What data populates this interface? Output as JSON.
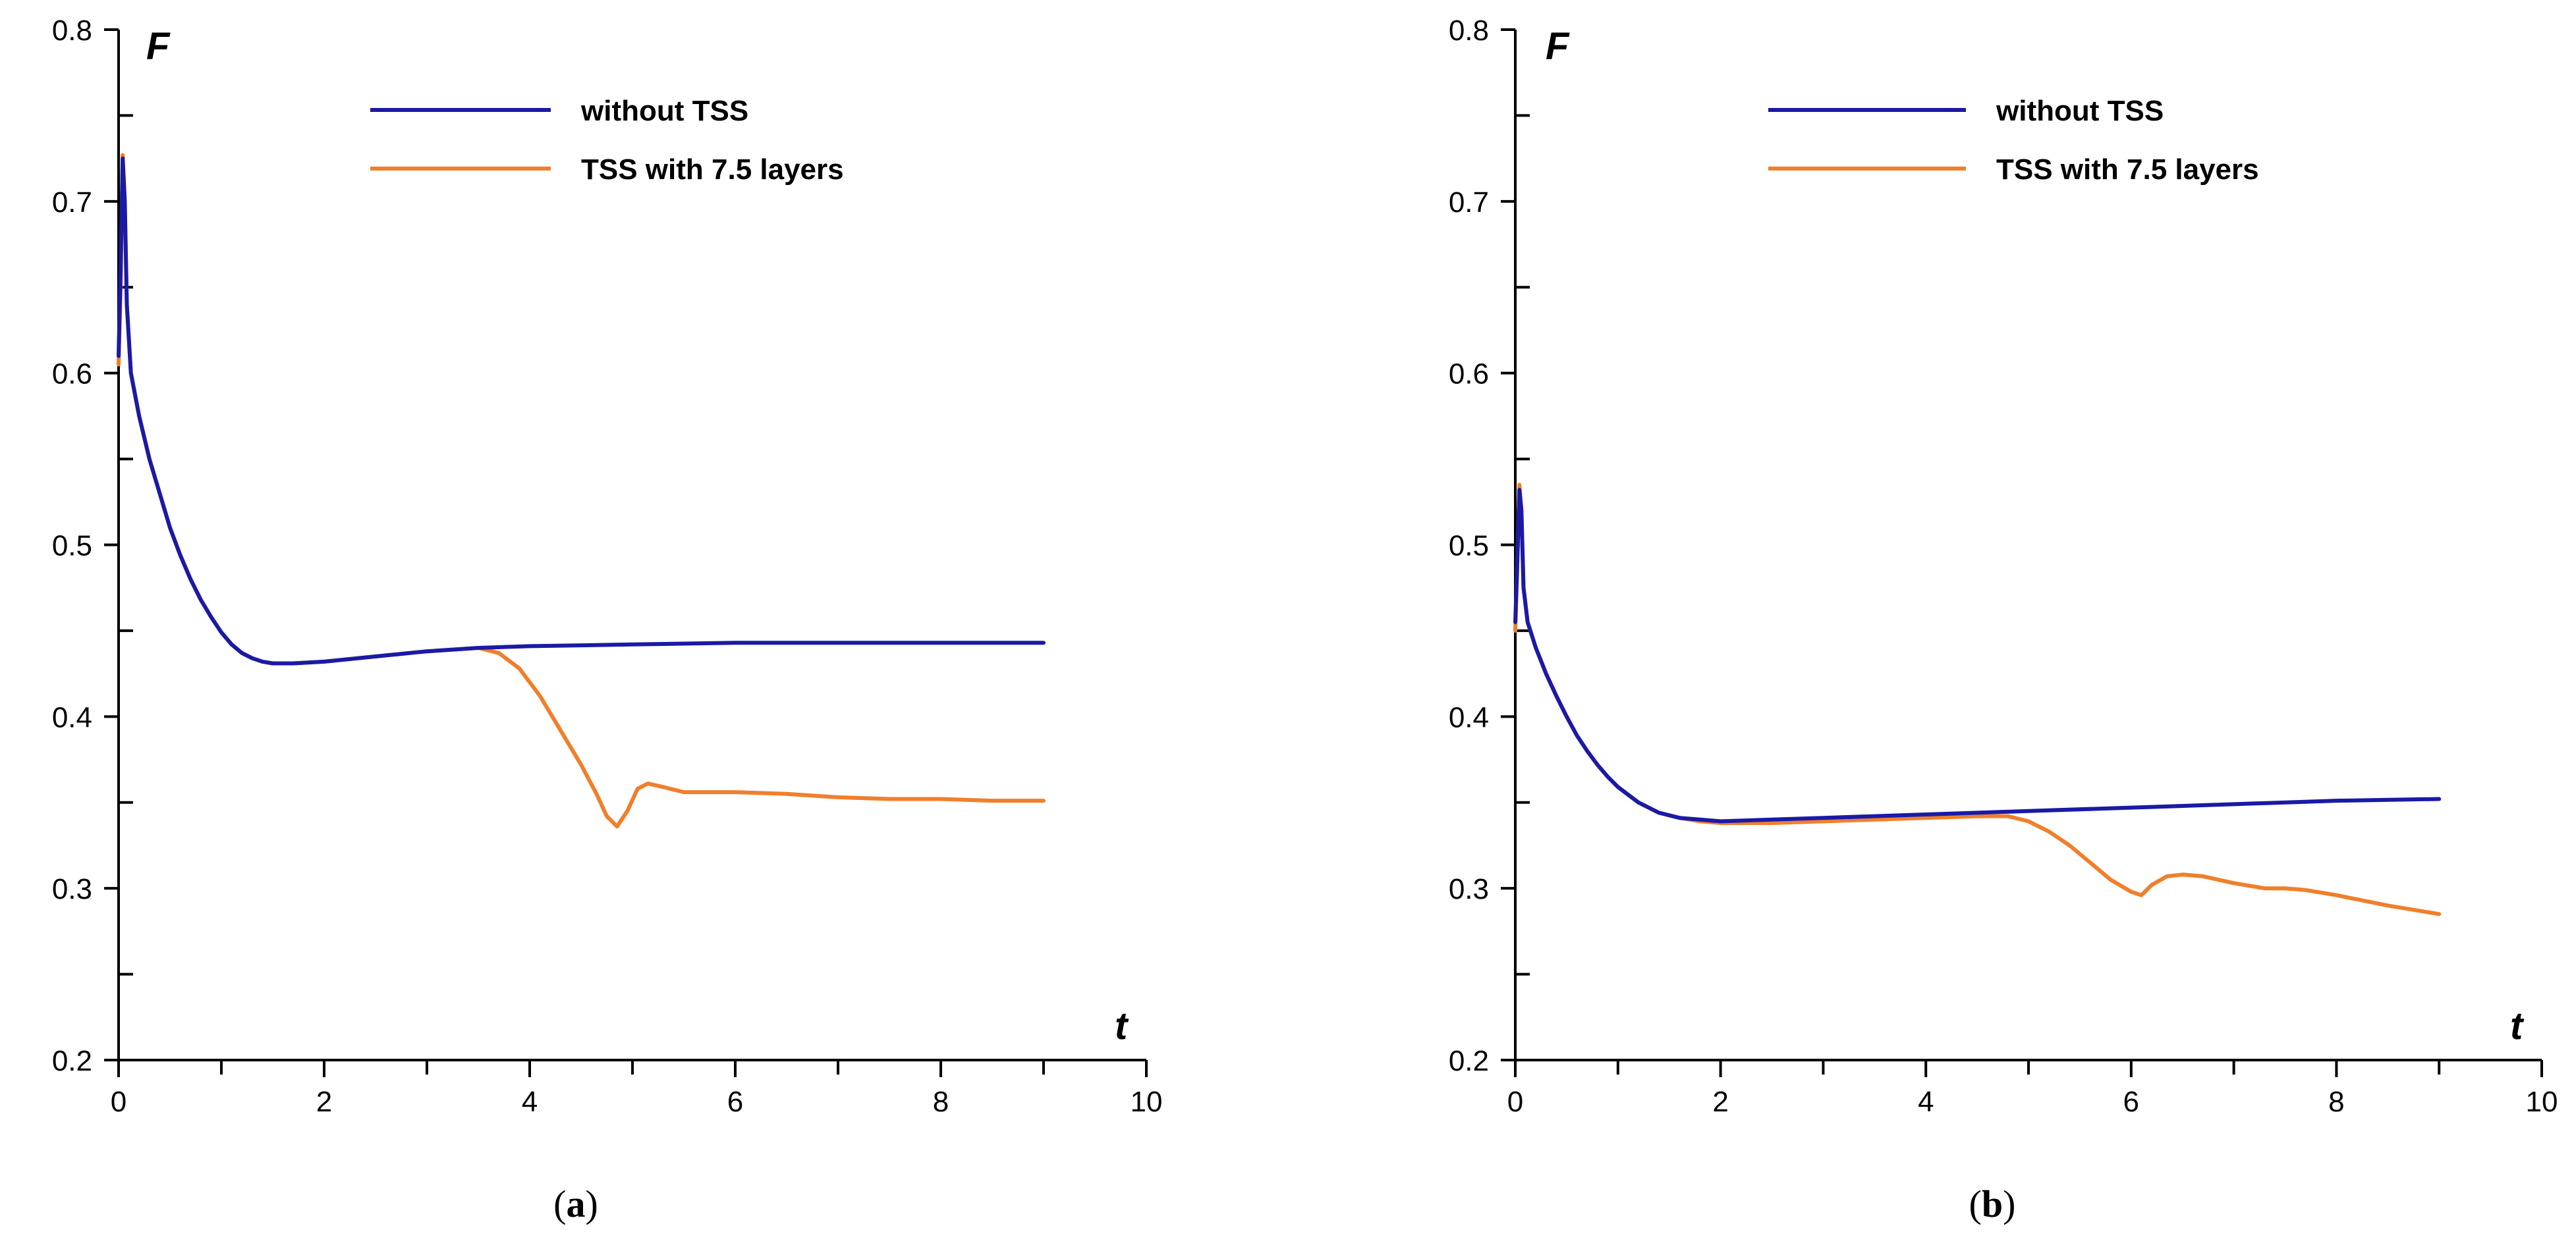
{
  "chart_data": [
    {
      "type": "line",
      "panel_label": "(a)",
      "panel_letter": "a",
      "xlabel": "t",
      "ylabel": "F",
      "xlim": [
        0,
        10
      ],
      "ylim": [
        0.2,
        0.8
      ],
      "x_ticks": [
        "0",
        "2",
        "4",
        "6",
        "8",
        "10"
      ],
      "y_ticks": [
        "0.2",
        "0.3",
        "0.4",
        "0.5",
        "0.6",
        "0.7",
        "0.8"
      ],
      "legend_position": "top-center",
      "series": [
        {
          "name": "without TSS",
          "color": "#1a1aa6",
          "points": [
            [
              0,
              0.61
            ],
            [
              0.02,
              0.66
            ],
            [
              0.04,
              0.725
            ],
            [
              0.06,
              0.7
            ],
            [
              0.08,
              0.64
            ],
            [
              0.12,
              0.6
            ],
            [
              0.2,
              0.575
            ],
            [
              0.3,
              0.55
            ],
            [
              0.4,
              0.53
            ],
            [
              0.5,
              0.51
            ],
            [
              0.6,
              0.494
            ],
            [
              0.7,
              0.48
            ],
            [
              0.8,
              0.468
            ],
            [
              0.9,
              0.458
            ],
            [
              1.0,
              0.449
            ],
            [
              1.1,
              0.442
            ],
            [
              1.2,
              0.437
            ],
            [
              1.3,
              0.434
            ],
            [
              1.4,
              0.432
            ],
            [
              1.5,
              0.431
            ],
            [
              1.7,
              0.431
            ],
            [
              2.0,
              0.432
            ],
            [
              2.5,
              0.435
            ],
            [
              3.0,
              0.438
            ],
            [
              3.5,
              0.44
            ],
            [
              4.0,
              0.441
            ],
            [
              5.0,
              0.442
            ],
            [
              6.0,
              0.443
            ],
            [
              7.0,
              0.443
            ],
            [
              8.0,
              0.443
            ],
            [
              9.0,
              0.443
            ]
          ]
        },
        {
          "name": "TSS with 7.5 layers",
          "color": "#f07f2c",
          "points": [
            [
              0,
              0.605
            ],
            [
              0.02,
              0.65
            ],
            [
              0.04,
              0.727
            ],
            [
              0.06,
              0.7
            ],
            [
              0.08,
              0.64
            ],
            [
              0.12,
              0.6
            ],
            [
              0.2,
              0.575
            ],
            [
              0.3,
              0.55
            ],
            [
              0.4,
              0.53
            ],
            [
              0.5,
              0.51
            ],
            [
              0.6,
              0.494
            ],
            [
              0.7,
              0.48
            ],
            [
              0.8,
              0.468
            ],
            [
              0.9,
              0.458
            ],
            [
              1.0,
              0.449
            ],
            [
              1.1,
              0.442
            ],
            [
              1.2,
              0.437
            ],
            [
              1.3,
              0.434
            ],
            [
              1.4,
              0.432
            ],
            [
              1.5,
              0.431
            ],
            [
              1.7,
              0.431
            ],
            [
              2.0,
              0.432
            ],
            [
              2.5,
              0.435
            ],
            [
              3.0,
              0.438
            ],
            [
              3.5,
              0.44
            ],
            [
              3.7,
              0.437
            ],
            [
              3.9,
              0.428
            ],
            [
              4.1,
              0.412
            ],
            [
              4.3,
              0.392
            ],
            [
              4.5,
              0.372
            ],
            [
              4.65,
              0.355
            ],
            [
              4.75,
              0.342
            ],
            [
              4.85,
              0.336
            ],
            [
              4.95,
              0.345
            ],
            [
              5.05,
              0.358
            ],
            [
              5.15,
              0.361
            ],
            [
              5.3,
              0.359
            ],
            [
              5.5,
              0.356
            ],
            [
              5.7,
              0.356
            ],
            [
              6.0,
              0.356
            ],
            [
              6.5,
              0.355
            ],
            [
              7.0,
              0.353
            ],
            [
              7.5,
              0.352
            ],
            [
              8.0,
              0.352
            ],
            [
              8.5,
              0.351
            ],
            [
              9.0,
              0.351
            ]
          ]
        }
      ]
    },
    {
      "type": "line",
      "panel_label": "(b)",
      "panel_letter": "b",
      "xlabel": "t",
      "ylabel": "F",
      "xlim": [
        0,
        10
      ],
      "ylim": [
        0.2,
        0.8
      ],
      "x_ticks": [
        "0",
        "2",
        "4",
        "6",
        "8",
        "10"
      ],
      "y_ticks": [
        "0.2",
        "0.3",
        "0.4",
        "0.5",
        "0.6",
        "0.7",
        "0.8"
      ],
      "legend_position": "top-center",
      "series": [
        {
          "name": "without TSS",
          "color": "#1a1aa6",
          "points": [
            [
              0,
              0.455
            ],
            [
              0.02,
              0.49
            ],
            [
              0.04,
              0.532
            ],
            [
              0.06,
              0.52
            ],
            [
              0.08,
              0.475
            ],
            [
              0.12,
              0.455
            ],
            [
              0.2,
              0.44
            ],
            [
              0.3,
              0.425
            ],
            [
              0.4,
              0.412
            ],
            [
              0.5,
              0.4
            ],
            [
              0.6,
              0.389
            ],
            [
              0.7,
              0.38
            ],
            [
              0.8,
              0.372
            ],
            [
              0.9,
              0.365
            ],
            [
              1.0,
              0.359
            ],
            [
              1.2,
              0.35
            ],
            [
              1.4,
              0.344
            ],
            [
              1.6,
              0.341
            ],
            [
              1.8,
              0.34
            ],
            [
              2.0,
              0.339
            ],
            [
              2.5,
              0.34
            ],
            [
              3.0,
              0.341
            ],
            [
              3.5,
              0.342
            ],
            [
              4.0,
              0.343
            ],
            [
              4.5,
              0.344
            ],
            [
              5.0,
              0.345
            ],
            [
              6.0,
              0.347
            ],
            [
              7.0,
              0.349
            ],
            [
              8.0,
              0.351
            ],
            [
              9.0,
              0.352
            ]
          ]
        },
        {
          "name": "TSS with 7.5 layers",
          "color": "#f07f2c",
          "points": [
            [
              0,
              0.45
            ],
            [
              0.02,
              0.49
            ],
            [
              0.04,
              0.535
            ],
            [
              0.06,
              0.52
            ],
            [
              0.08,
              0.475
            ],
            [
              0.12,
              0.455
            ],
            [
              0.2,
              0.44
            ],
            [
              0.3,
              0.425
            ],
            [
              0.4,
              0.412
            ],
            [
              0.5,
              0.4
            ],
            [
              0.6,
              0.389
            ],
            [
              0.7,
              0.38
            ],
            [
              0.8,
              0.372
            ],
            [
              0.9,
              0.365
            ],
            [
              1.0,
              0.359
            ],
            [
              1.2,
              0.35
            ],
            [
              1.4,
              0.344
            ],
            [
              1.6,
              0.341
            ],
            [
              1.8,
              0.339
            ],
            [
              2.0,
              0.338
            ],
            [
              2.5,
              0.338
            ],
            [
              3.0,
              0.339
            ],
            [
              3.5,
              0.34
            ],
            [
              4.0,
              0.341
            ],
            [
              4.5,
              0.342
            ],
            [
              4.8,
              0.342
            ],
            [
              5.0,
              0.339
            ],
            [
              5.2,
              0.333
            ],
            [
              5.4,
              0.325
            ],
            [
              5.6,
              0.315
            ],
            [
              5.8,
              0.305
            ],
            [
              6.0,
              0.298
            ],
            [
              6.1,
              0.296
            ],
            [
              6.2,
              0.302
            ],
            [
              6.35,
              0.307
            ],
            [
              6.5,
              0.308
            ],
            [
              6.7,
              0.307
            ],
            [
              7.0,
              0.303
            ],
            [
              7.3,
              0.3
            ],
            [
              7.5,
              0.3
            ],
            [
              7.7,
              0.299
            ],
            [
              8.0,
              0.296
            ],
            [
              8.5,
              0.29
            ],
            [
              9.0,
              0.285
            ]
          ]
        }
      ]
    }
  ]
}
